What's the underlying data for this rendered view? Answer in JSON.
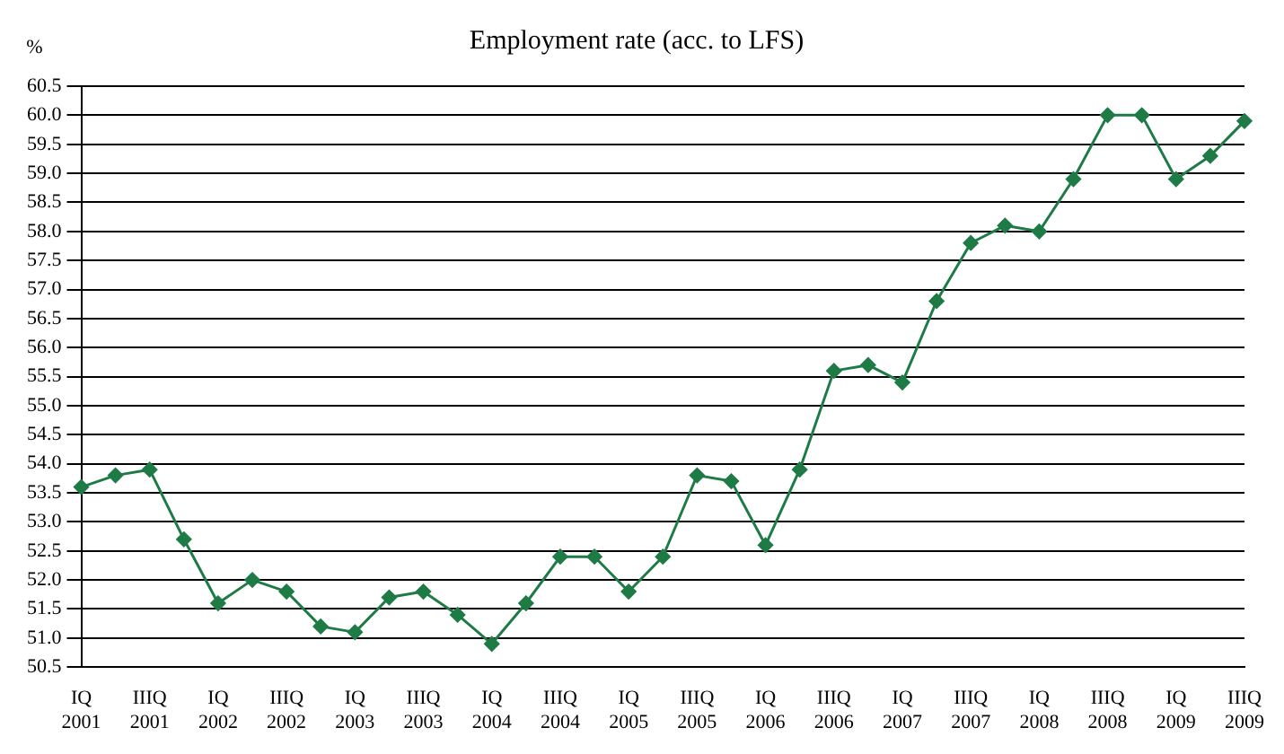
{
  "chart_data": {
    "type": "line",
    "title": "Employment rate (acc. to LFS)",
    "ylabel": "%",
    "categories": [
      "IQ 2001",
      null,
      "IIIQ 2001",
      null,
      "IQ 2002",
      null,
      "IIIQ 2002",
      null,
      "IQ 2003",
      null,
      "IIIQ 2003",
      null,
      "IQ 2004",
      null,
      "IIIQ 2004",
      null,
      "IQ 2005",
      null,
      "IIIQ 2005",
      null,
      "IQ 2006",
      null,
      "IIIQ 2006",
      null,
      "IQ 2007",
      null,
      "IIIQ 2007",
      null,
      "IQ 2008",
      null,
      "IIIQ 2008",
      null,
      "IQ 2009",
      null,
      "IIIQ 2009"
    ],
    "series": [
      {
        "color": "#1e7b45",
        "values": [
          53.6,
          53.8,
          53.9,
          52.7,
          51.6,
          52.0,
          51.8,
          51.2,
          51.1,
          51.7,
          51.8,
          51.4,
          50.9,
          51.6,
          52.4,
          52.4,
          51.8,
          52.4,
          53.8,
          53.7,
          52.6,
          53.9,
          55.6,
          55.7,
          55.4,
          56.8,
          57.8,
          58.1,
          58.0,
          58.9,
          60.0,
          60.0,
          58.9,
          59.3,
          59.9
        ]
      }
    ],
    "ylim": [
      50.5,
      60.5
    ],
    "yticks": [
      {
        "value": 50.5,
        "label": "50.5"
      },
      {
        "value": 51,
        "label": "51.0"
      },
      {
        "value": 51.5,
        "label": "51.5"
      },
      {
        "value": 52,
        "label": "52.0"
      },
      {
        "value": 52.5,
        "label": "52.5"
      },
      {
        "value": 53,
        "label": "53.0"
      },
      {
        "value": 53.5,
        "label": "53.5"
      },
      {
        "value": 54,
        "label": "54.0"
      },
      {
        "value": 54.5,
        "label": "54.5"
      },
      {
        "value": 55,
        "label": "55.0"
      },
      {
        "value": 55.5,
        "label": "55.5"
      },
      {
        "value": 56,
        "label": "56.0"
      },
      {
        "value": 56.5,
        "label": "56.5"
      },
      {
        "value": 57,
        "label": "57.0"
      },
      {
        "value": 57.5,
        "label": "57.5"
      },
      {
        "value": 58,
        "label": "58.0"
      },
      {
        "value": 58.5,
        "label": "58.5"
      },
      {
        "value": 59,
        "label": "59.0"
      },
      {
        "value": 59.5,
        "label": "59.5"
      },
      {
        "value": 60,
        "label": "60.0"
      },
      {
        "value": 60.5,
        "label": "60.5"
      }
    ],
    "grid": "y",
    "legend": false,
    "marker": "diamond",
    "line_style": "solid"
  }
}
